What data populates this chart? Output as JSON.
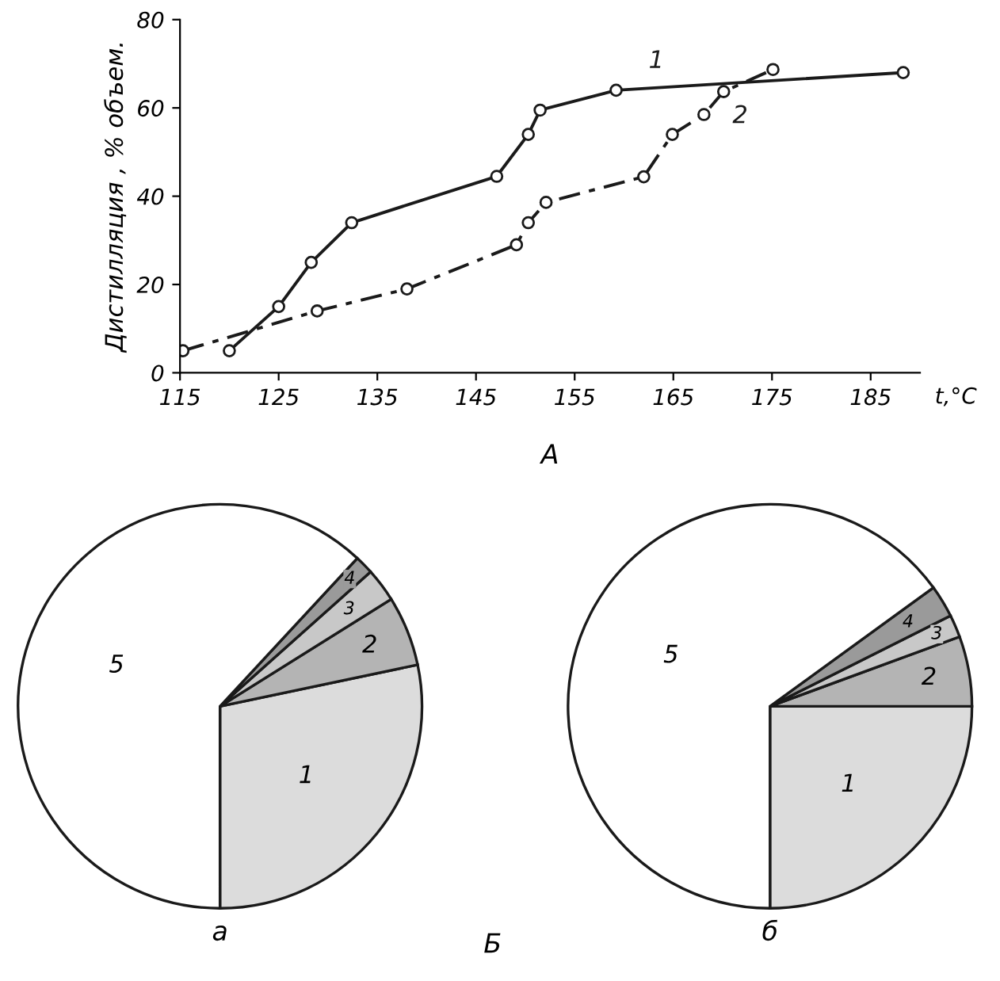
{
  "chart_data": [
    {
      "type": "line",
      "ylabel": "Дистилляция , % объем.",
      "xlabel": "t,°C",
      "annotations": [
        "А"
      ],
      "xlim": [
        115,
        190
      ],
      "ylim": [
        0,
        80
      ],
      "xticks": [
        115,
        125,
        135,
        145,
        155,
        165,
        175,
        185
      ],
      "yticks": [
        0,
        20,
        40,
        60,
        80
      ],
      "marker": "circle",
      "grid": false,
      "series": [
        {
          "name": "1",
          "color": "#1a1a1a",
          "line_style": "solid",
          "x": [
            120,
            125,
            128.3,
            132.4,
            147.1,
            150.3,
            151.5,
            159.2,
            188.3
          ],
          "values": [
            5,
            15,
            25,
            34,
            44.5,
            54,
            59.5,
            64,
            68
          ]
        },
        {
          "name": "2",
          "color": "#1a1a1a",
          "line_style": "dashed",
          "x": [
            115.3,
            128.9,
            138,
            149.1,
            150.3,
            152.1,
            162,
            164.9,
            168.1,
            170.1,
            175.1
          ],
          "values": [
            5,
            14,
            19,
            29,
            34,
            38.6,
            44.4,
            54,
            58.5,
            63.7,
            68.7
          ]
        }
      ]
    },
    {
      "type": "pie",
      "title": "а",
      "annotations": [
        "Б"
      ],
      "categories": [
        "1",
        "2",
        "3",
        "4",
        "5"
      ],
      "values": [
        28.3,
        5.6,
        2.7,
        1.5,
        61.9
      ],
      "colors": [
        "#dcdcdc",
        "#b4b4b4",
        "#c8c8c8",
        "#9a9a9a",
        "#ffffff"
      ]
    },
    {
      "type": "pie",
      "title": "б",
      "categories": [
        "1",
        "2",
        "3",
        "4",
        "5"
      ],
      "values": [
        25.0,
        5.6,
        1.8,
        2.6,
        65.0
      ],
      "colors": [
        "#dcdcdc",
        "#b4b4b4",
        "#c8c8c8",
        "#9a9a9a",
        "#ffffff"
      ]
    }
  ]
}
